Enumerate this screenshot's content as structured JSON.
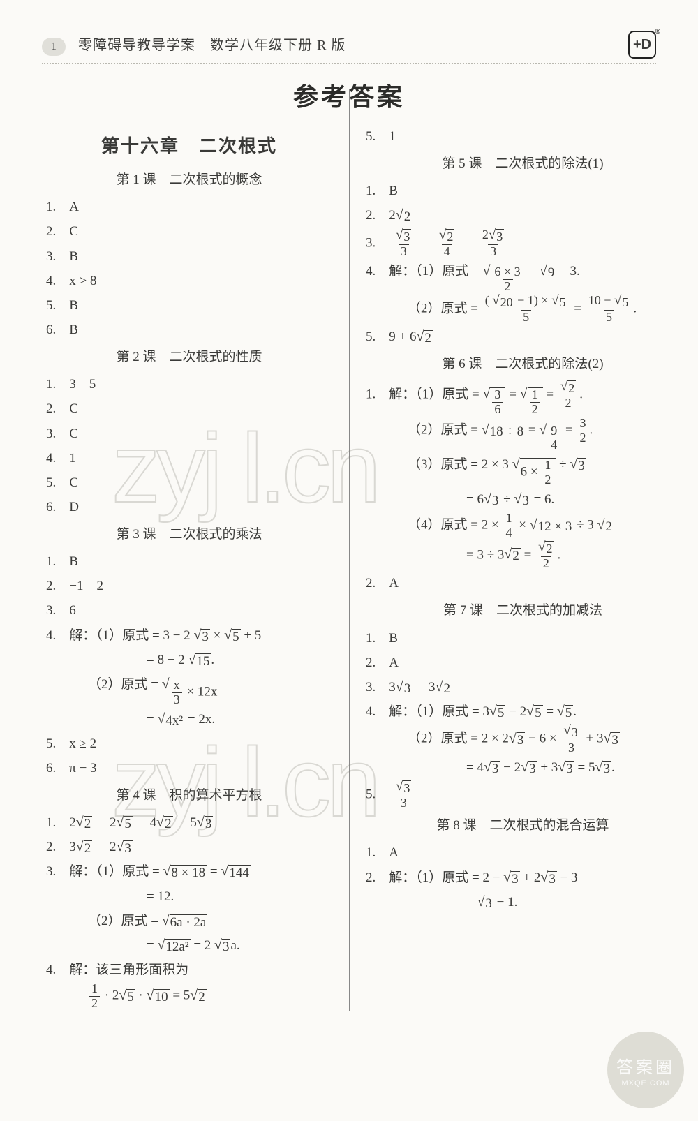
{
  "header": {
    "page_number": "1",
    "title": "零障碍导教导学案　数学八年级下册 R 版",
    "logo_text": "+D"
  },
  "main_title": "参考答案",
  "left": {
    "chapter": "第十六章　二次根式",
    "lesson1": {
      "title": "第 1 课　二次根式的概念",
      "q1": "1.　A",
      "q2": "2.　C",
      "q3": "3.　B",
      "q4": "4.　x > 8",
      "q5": "5.　B",
      "q6": "6.　B"
    },
    "lesson2": {
      "title": "第 2 课　二次根式的性质",
      "q1": "1.　3　5",
      "q2": "2.　C",
      "q3": "3.　C",
      "q4": "4.　1",
      "q5": "5.　C",
      "q6": "6.　D"
    },
    "lesson3": {
      "title": "第 3 课　二次根式的乘法",
      "q1": "1.　B",
      "q2": "2.　−1　2",
      "q3": "3.　6",
      "q4_head": "4.　解：（1）原式 = 3 − 2",
      "q4_a": "3",
      "q4_times": " × ",
      "q4_b": "5",
      "q4_tail": " + 5",
      "q4_line2_eq": "= 8 − 2 ",
      "q4_line2_r": "15",
      "q4_line2_dot": ".",
      "q4_2_head": "（2）原式 = ",
      "q4_2_num": "x",
      "q4_2_den": "3",
      "q4_2_tail": " × 12x",
      "q4_2_line2_eq": "= ",
      "q4_2_line2_r": "4x²",
      "q4_2_line2_tail": " = 2x.",
      "q5": "5.　x ≥ 2",
      "q6": "6.　π − 3"
    },
    "lesson4": {
      "title": "第 4 课　积的算术平方根",
      "q1_head": "1.　2",
      "q1_a": "2",
      "q1_b": "5",
      "q1_c": "2",
      "q1_d": "3",
      "q1_2": "2",
      "q1_4": "4",
      "q1_5": "5",
      "q2_head": "2.　3",
      "q2_a": "2",
      "q2_2": "2",
      "q2_b": "3",
      "q3_head": "3.　解：（1）原式 = ",
      "q3_r1": "8 × 18",
      "q3_eq": " = ",
      "q3_r2": "144",
      "q3_line2": "= 12.",
      "q3_2_head": "（2）原式 = ",
      "q3_2_r1": "6a · 2a",
      "q3_2_line2_eq": "= ",
      "q3_2_line2_r": "12a²",
      "q3_2_line2_tail": " = 2",
      "q3_2_line2_r2": "3",
      "q3_2_line2_a": "a.",
      "q4_head": "4.　解：该三角形面积为",
      "q4_line2_f": "1",
      "q4_line2_d": "2",
      "q4_line2_dot1": " · 2",
      "q4_line2_r1": "5",
      "q4_line2_dot2": " · ",
      "q4_line2_r2": "10",
      "q4_line2_eq": " = 5",
      "q4_line2_r3": "2"
    }
  },
  "right": {
    "pre": "5.　1",
    "lesson5": {
      "title": "第 5 课　二次根式的除法(1)",
      "q1": "1.　B",
      "q2_h": "2.　2",
      "q2_r": "2",
      "q3_h": "3.　",
      "q3_f1n": "3",
      "q3_f1d": "3",
      "q3_f2n": "2",
      "q3_f2d": "4",
      "q3_f3nA": "2",
      "q3_f3nB": "3",
      "q3_f3d": "3",
      "q4_h": "4.　解：（1）原式 = ",
      "q4_in_n": "6 × 3",
      "q4_in_d": "2",
      "q4_mid": " = ",
      "q4_r": "9",
      "q4_tail": " = 3.",
      "q4_2_h": "（2）原式 = ",
      "q4_2_n1": "20",
      "q4_2_n2": " − 1) × ",
      "q4_2_n3": "5",
      "q4_2_d": "5",
      "q4_2_eq": " = ",
      "q4_2_rn1": "10 − ",
      "q4_2_rn2": "5",
      "q4_2_rd": "5",
      "q4_2_dot": ".",
      "q5_h": "5.　9 + 6",
      "q5_r": "2"
    },
    "lesson6": {
      "title": "第 6 课　二次根式的除法(2)",
      "q1_h": "1.　解：（1）原式 = ",
      "q1_in_n": "3",
      "q1_in_d": "6",
      "q1_eq1": " = ",
      "q1_f2n": "1",
      "q1_f2d": "2",
      "q1_eq2": " = ",
      "q1_f3n": "2",
      "q1_f3d": "2",
      "q1_dot": ".",
      "q2_h": "（2）原式 = ",
      "q2_r1": "18 ÷ 8",
      "q2_eq1": " = ",
      "q2_in_n": "9",
      "q2_in_d": "4",
      "q2_eq2": " = ",
      "q2_f_n": "3",
      "q2_f_d": "2",
      "q2_dot": ".",
      "q3_h": "（3）原式 = 2 × 3",
      "q3_r1_in": "6 × ",
      "q3_r1_fn": "1",
      "q3_r1_fd": "2",
      "q3_tail1": " ÷ ",
      "q3_r2": "3",
      "q3_l2": "= 6",
      "q3_l2_r1": "3",
      "q3_l2_mid": " ÷ ",
      "q3_l2_r2": "3",
      "q3_l2_tail": " = 6.",
      "q4_h": "（4）原式 = 2 × ",
      "q4_fn": "1",
      "q4_fd": "4",
      "q4_mid1": " × ",
      "q4_r1": "12 × 3",
      "q4_mid2": " ÷ 3",
      "q4_r2": "2",
      "q4_l2": "= 3 ÷ 3",
      "q4_l2_r": "2",
      "q4_l2_eq": " = ",
      "q4_l2_fn": "2",
      "q4_l2_fd": "2",
      "q4_l2_dot": ".",
      "q2a": "2.　A"
    },
    "lesson7": {
      "title": "第 7 课　二次根式的加减法",
      "q1": "1.　B",
      "q2": "2.　A",
      "q3_h": "3.　3",
      "q3_r1": "3",
      "q3_gap": "　3",
      "q3_r2": "2",
      "q4_h": "4.　解：（1）原式 = 3",
      "q4_r1": "5",
      "q4_m1": " − 2",
      "q4_r2": "5",
      "q4_eq": " = ",
      "q4_r3": "5",
      "q4_dot": ".",
      "q4_2_h": "（2）原式 = 2 × 2",
      "q4_2_r1": "3",
      "q4_2_m1": " − 6 × ",
      "q4_2_fn": "3",
      "q4_2_fd": "3",
      "q4_2_m2": " + 3",
      "q4_2_r2": "3",
      "q4_2_l2": "= 4",
      "q4_2_l2_r1": "3",
      "q4_2_l2_m1": " − 2",
      "q4_2_l2_r2": "3",
      "q4_2_l2_m2": " + 3",
      "q4_2_l2_r3": "3",
      "q4_2_l2_eq": " = 5",
      "q4_2_l2_r4": "3",
      "q4_2_l2_dot": ".",
      "q5_h": "5.　",
      "q5_fn": "3",
      "q5_fd": "3"
    },
    "lesson8": {
      "title": "第 8 课　二次根式的混合运算",
      "q1": "1.　A",
      "q2_h": "2.　解：（1）原式 = 2 − ",
      "q2_r1": "3",
      "q2_m1": " + 2",
      "q2_r2": "3",
      "q2_m2": " − 3",
      "q2_l2": "= ",
      "q2_l2_r": "3",
      "q2_l2_tail": " − 1."
    }
  },
  "watermark": "zyj l.cn",
  "badge": {
    "line1": "答案圈",
    "line2": "MXQE.COM"
  },
  "colors": {
    "text": "#3a3a38",
    "page_bg": "#fbfaf7"
  }
}
